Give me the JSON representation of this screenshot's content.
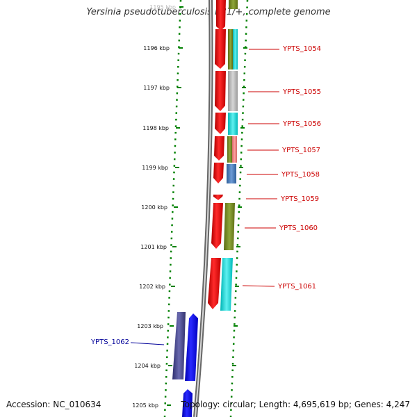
{
  "title": "Yersinia pseudotuberculosis PB1/+, complete genome",
  "ruler": {
    "ticks": [
      "1195 kbp",
      "1196 kbp",
      "1197 kbp",
      "1198 kbp",
      "1199 kbp",
      "1200 kbp",
      "1201 kbp",
      "1202 kbp",
      "1203 kbp",
      "1204 kbp",
      "1205 kbp"
    ]
  },
  "genes": [
    {
      "id": "YPTS_1054",
      "color": "#cc0000",
      "strand": "forward"
    },
    {
      "id": "YPTS_1055",
      "color": "#cc0000",
      "strand": "forward"
    },
    {
      "id": "YPTS_1056",
      "color": "#cc0000",
      "strand": "forward"
    },
    {
      "id": "YPTS_1057",
      "color": "#cc0000",
      "strand": "forward"
    },
    {
      "id": "YPTS_1058",
      "color": "#cc0000",
      "strand": "forward"
    },
    {
      "id": "YPTS_1059",
      "color": "#cc0000",
      "strand": "forward"
    },
    {
      "id": "YPTS_1060",
      "color": "#cc0000",
      "strand": "forward"
    },
    {
      "id": "YPTS_1061",
      "color": "#cc0000",
      "strand": "forward"
    },
    {
      "id": "YPTS_1062",
      "color": "#000099",
      "strand": "reverse"
    }
  ],
  "footer": {
    "accession": "Accession: NC_010634",
    "summary": "Topology: circular; Length: 4,695,619 bp; Genes: 4,247"
  },
  "colors": {
    "forward_gene": "#ff0000",
    "reverse_gene": "#0000ff",
    "backbone": "#777777",
    "ruler_dots": "#008000",
    "label_forward": "#cc0000",
    "label_reverse": "#000099"
  }
}
